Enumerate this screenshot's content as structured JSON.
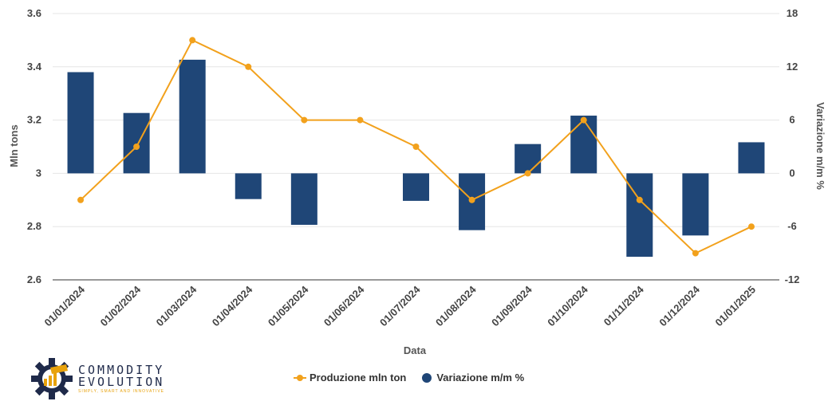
{
  "chart_data": {
    "type": "bar+line",
    "title": "",
    "xlabel": "Data",
    "ylabel": "Mln tons",
    "y2label": "Variazione m/m %",
    "categories": [
      "01/01/2024",
      "01/02/2024",
      "01/03/2024",
      "01/04/2024",
      "01/05/2024",
      "01/06/2024",
      "01/07/2024",
      "01/08/2024",
      "01/09/2024",
      "01/10/2024",
      "01/11/2024",
      "01/12/2024",
      "01/01/2025"
    ],
    "ylim": [
      2.6,
      3.6
    ],
    "yticks": [
      "2.6",
      "2.8",
      "3",
      "3.2",
      "3.4",
      "3.6"
    ],
    "y2lim": [
      -12,
      18
    ],
    "y2ticks": [
      "-12",
      "-6",
      "0",
      "6",
      "12",
      "18"
    ],
    "series": [
      {
        "name": "Produzione mln ton",
        "type": "line",
        "axis": "left",
        "color": "#f2a11c",
        "values": [
          2.9,
          3.1,
          3.5,
          3.4,
          3.2,
          3.2,
          3.1,
          2.9,
          3.0,
          3.2,
          2.9,
          2.7,
          2.8
        ]
      },
      {
        "name": "Variazione m/m %",
        "type": "bar",
        "axis": "right",
        "color": "#1f4677",
        "values": [
          11.4,
          6.8,
          12.8,
          -2.9,
          -5.8,
          0,
          -3.1,
          -6.4,
          3.3,
          6.5,
          -9.4,
          -7.0,
          3.5
        ]
      }
    ],
    "grid": true,
    "legend_position": "bottom"
  },
  "logo": {
    "name": "COMMODITY",
    "name2": "EVOLUTION",
    "tagline": "SIMPLY, SMART AND INNOVATIVE"
  }
}
